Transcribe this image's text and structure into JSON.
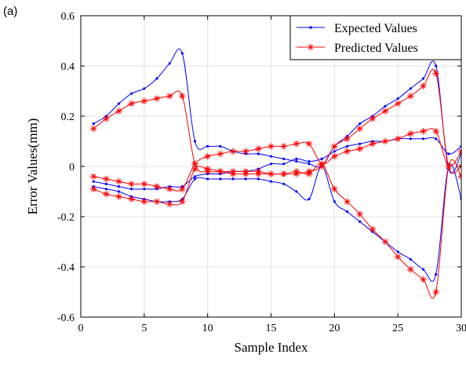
{
  "panel_label": "(a)",
  "chart_data": {
    "type": "line",
    "xlabel": "Sample Index",
    "ylabel": "Error  Values(mm)",
    "xlim": [
      0,
      30
    ],
    "ylim": [
      -0.6,
      0.6
    ],
    "xticks": [
      0,
      5,
      10,
      15,
      20,
      25,
      30
    ],
    "yticks": [
      -0.6,
      -0.4,
      -0.2,
      0,
      0.2,
      0.4,
      0.6
    ],
    "xtick_labels": [
      "0",
      "5",
      "10",
      "15",
      "20",
      "25",
      "30"
    ],
    "ytick_labels": [
      "-0.6",
      "-0.4",
      "-0.2",
      "0",
      "0.2",
      "0.4",
      "0.6"
    ],
    "grid": true,
    "legend_position": "top-right",
    "x": [
      1,
      2,
      3,
      4,
      5,
      6,
      7,
      8,
      9,
      10,
      11,
      12,
      13,
      14,
      15,
      16,
      17,
      18,
      19,
      20,
      21,
      22,
      23,
      24,
      25,
      26,
      27,
      28,
      29,
      30
    ],
    "series": [
      {
        "name": "Expected Values",
        "color": "#0000ff",
        "marker": "dot",
        "curves": [
          [
            0.17,
            0.2,
            0.25,
            0.29,
            0.31,
            0.35,
            0.41,
            0.45,
            0.1,
            0.08,
            0.08,
            0.06,
            0.05,
            0.05,
            0.04,
            0.03,
            0.02,
            0.01,
            0.0,
            0.08,
            0.12,
            0.17,
            0.2,
            0.24,
            0.27,
            0.31,
            0.35,
            0.4,
            -0.01,
            0.05
          ],
          [
            -0.06,
            -0.07,
            -0.08,
            -0.09,
            -0.09,
            -0.09,
            -0.08,
            -0.08,
            -0.04,
            -0.03,
            -0.03,
            -0.02,
            -0.02,
            -0.01,
            0.01,
            0.01,
            0.03,
            0.02,
            0.03,
            0.06,
            0.08,
            0.09,
            0.1,
            0.1,
            0.11,
            0.11,
            0.11,
            0.11,
            0.05,
            0.08
          ],
          [
            -0.08,
            -0.09,
            -0.1,
            -0.12,
            -0.13,
            -0.14,
            -0.14,
            -0.13,
            -0.05,
            -0.05,
            -0.05,
            -0.05,
            -0.05,
            -0.05,
            -0.06,
            -0.07,
            -0.1,
            -0.13,
            0.0,
            -0.14,
            -0.18,
            -0.22,
            -0.26,
            -0.3,
            -0.34,
            -0.37,
            -0.41,
            -0.43,
            0.0,
            -0.13
          ]
        ]
      },
      {
        "name": "Predicted Values",
        "color": "#ff0000",
        "marker": "asterisk",
        "curves": [
          [
            0.15,
            0.19,
            0.22,
            0.25,
            0.26,
            0.27,
            0.28,
            0.28,
            0.01,
            -0.02,
            -0.02,
            -0.02,
            -0.02,
            -0.02,
            -0.03,
            -0.03,
            -0.03,
            -0.02,
            0.0,
            0.08,
            0.11,
            0.15,
            0.19,
            0.22,
            0.25,
            0.28,
            0.32,
            0.37,
            0.0,
            0.0
          ],
          [
            -0.04,
            -0.05,
            -0.06,
            -0.07,
            -0.07,
            -0.08,
            -0.09,
            -0.09,
            0.01,
            0.04,
            0.05,
            0.06,
            0.06,
            0.07,
            0.08,
            0.08,
            0.09,
            0.09,
            0.01,
            0.04,
            0.06,
            0.07,
            0.09,
            0.1,
            0.11,
            0.13,
            0.14,
            0.14,
            0.0,
            0.06
          ],
          [
            -0.09,
            -0.11,
            -0.12,
            -0.13,
            -0.14,
            -0.14,
            -0.15,
            -0.14,
            -0.01,
            -0.01,
            -0.02,
            -0.03,
            -0.03,
            -0.03,
            -0.03,
            -0.03,
            -0.02,
            -0.03,
            0.01,
            -0.09,
            -0.14,
            -0.19,
            -0.25,
            -0.3,
            -0.36,
            -0.41,
            -0.45,
            -0.5,
            0.0,
            -0.04
          ]
        ]
      }
    ]
  }
}
